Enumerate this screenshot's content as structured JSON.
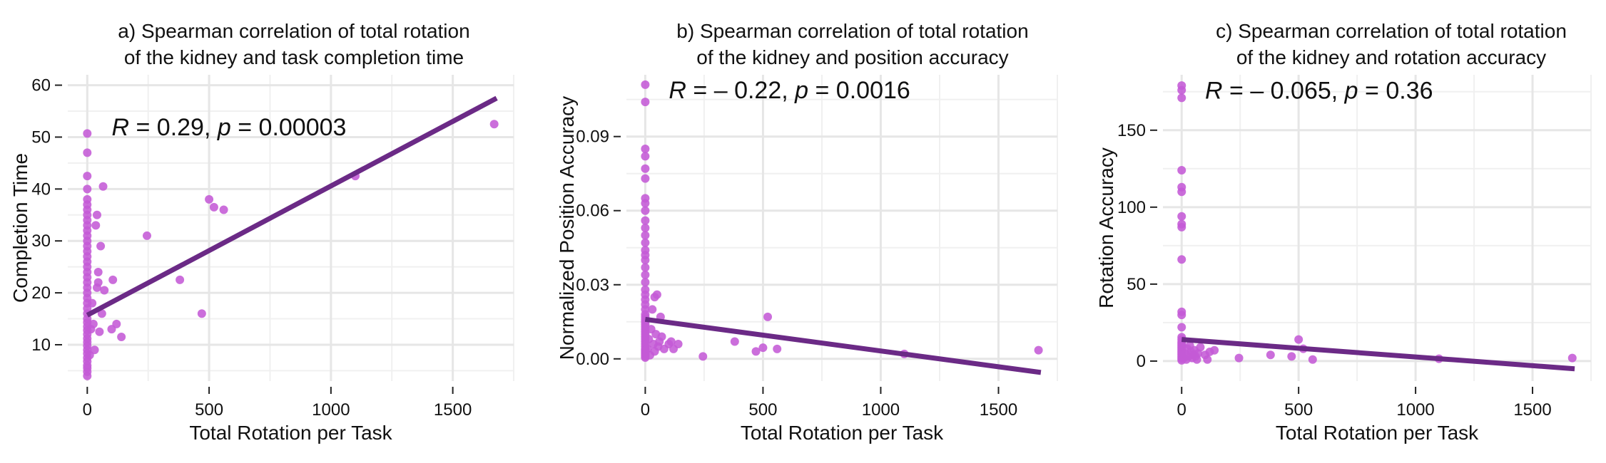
{
  "colors": {
    "point": "#c45ad6",
    "fit_line": "#6b2a86"
  },
  "chart_data": [
    {
      "type": "scatter",
      "title_lines": [
        "a) Spearman correlation of total rotation",
        "of the kidney and task completion time"
      ],
      "xlabel": "Total Rotation per Task",
      "ylabel": "Completion Time",
      "xlim": [
        -80,
        1750
      ],
      "ylim": [
        3,
        62
      ],
      "xticks": [
        0,
        500,
        1000,
        1500
      ],
      "yticks": [
        10,
        20,
        30,
        40,
        50,
        60
      ],
      "ytick_labels": [
        "10",
        "20",
        "30",
        "40",
        "50",
        "60"
      ],
      "annotation": {
        "R": "0.29",
        "p": "0.00003"
      },
      "annotation_pos": [
        100,
        52
      ],
      "fit_line": {
        "x": [
          0,
          1680
        ],
        "y": [
          15.7,
          57.5
        ]
      },
      "points": [
        [
          0,
          4
        ],
        [
          0,
          4.8
        ],
        [
          0,
          5.5
        ],
        [
          0,
          6
        ],
        [
          0,
          6.8
        ],
        [
          0,
          7.5
        ],
        [
          0,
          8.3
        ],
        [
          0,
          9
        ],
        [
          0,
          9.8
        ],
        [
          0,
          10.5
        ],
        [
          0,
          11.2
        ],
        [
          0,
          12
        ],
        [
          0,
          12.8
        ],
        [
          0,
          13.5
        ],
        [
          0,
          14.3
        ],
        [
          0,
          15
        ],
        [
          0,
          16
        ],
        [
          0,
          17
        ],
        [
          0,
          18
        ],
        [
          0,
          19
        ],
        [
          0,
          20
        ],
        [
          0,
          21
        ],
        [
          0,
          22
        ],
        [
          0,
          23
        ],
        [
          0,
          24
        ],
        [
          0,
          25
        ],
        [
          0,
          26
        ],
        [
          0,
          27
        ],
        [
          0,
          28
        ],
        [
          0,
          29
        ],
        [
          0,
          30
        ],
        [
          0,
          31
        ],
        [
          0,
          32
        ],
        [
          0,
          33
        ],
        [
          0,
          34
        ],
        [
          0,
          35
        ],
        [
          0,
          36
        ],
        [
          0,
          37
        ],
        [
          0,
          38
        ],
        [
          0,
          40
        ],
        [
          0,
          42.5
        ],
        [
          0,
          47
        ],
        [
          0,
          50.7
        ],
        [
          10,
          8
        ],
        [
          15,
          13
        ],
        [
          20,
          18
        ],
        [
          25,
          14
        ],
        [
          30,
          9
        ],
        [
          35,
          33
        ],
        [
          40,
          35
        ],
        [
          40,
          21
        ],
        [
          45,
          24
        ],
        [
          45,
          22
        ],
        [
          50,
          12.5
        ],
        [
          55,
          29
        ],
        [
          60,
          16
        ],
        [
          65,
          40.5
        ],
        [
          70,
          20.5
        ],
        [
          100,
          13
        ],
        [
          105,
          22.5
        ],
        [
          120,
          14
        ],
        [
          140,
          11.5
        ],
        [
          245,
          31
        ],
        [
          380,
          22.5
        ],
        [
          470,
          16
        ],
        [
          500,
          38
        ],
        [
          520,
          36.5
        ],
        [
          560,
          36
        ],
        [
          1100,
          42.5
        ],
        [
          1670,
          52.5
        ]
      ]
    },
    {
      "type": "scatter",
      "title_lines": [
        "b) Spearman correlation of total rotation",
        "of the kidney and position accuracy"
      ],
      "xlabel": "Total Rotation per Task",
      "ylabel": "Normalized Position Accuracy",
      "xlim": [
        -80,
        1750
      ],
      "ylim": [
        -0.009,
        0.115
      ],
      "xticks": [
        0,
        500,
        1000,
        1500
      ],
      "yticks": [
        0,
        0.03,
        0.06,
        0.09
      ],
      "ytick_labels": [
        "0.00",
        "0.03",
        "0.06",
        "0.09"
      ],
      "annotation": {
        "R": "– 0.22",
        "p": "0.0016"
      },
      "annotation_pos": [
        100,
        0.109
      ],
      "fit_line": {
        "x": [
          0,
          1680
        ],
        "y": [
          0.016,
          -0.0055
        ]
      },
      "points": [
        [
          0,
          0.0005
        ],
        [
          0,
          0.001
        ],
        [
          0,
          0.0015
        ],
        [
          0,
          0.002
        ],
        [
          0,
          0.0025
        ],
        [
          0,
          0.003
        ],
        [
          0,
          0.0035
        ],
        [
          0,
          0.004
        ],
        [
          0,
          0.005
        ],
        [
          0,
          0.006
        ],
        [
          0,
          0.007
        ],
        [
          0,
          0.008
        ],
        [
          0,
          0.009
        ],
        [
          0,
          0.01
        ],
        [
          0,
          0.011
        ],
        [
          0,
          0.012
        ],
        [
          0,
          0.013
        ],
        [
          0,
          0.014
        ],
        [
          0,
          0.015
        ],
        [
          0,
          0.016
        ],
        [
          0,
          0.017
        ],
        [
          0,
          0.018
        ],
        [
          0,
          0.02
        ],
        [
          0,
          0.022
        ],
        [
          0,
          0.024
        ],
        [
          0,
          0.026
        ],
        [
          0,
          0.028
        ],
        [
          0,
          0.031
        ],
        [
          0,
          0.034
        ],
        [
          0,
          0.037
        ],
        [
          0,
          0.04
        ],
        [
          0,
          0.042
        ],
        [
          0,
          0.044
        ],
        [
          0,
          0.047
        ],
        [
          0,
          0.05
        ],
        [
          0,
          0.053
        ],
        [
          0,
          0.056
        ],
        [
          0,
          0.06
        ],
        [
          0,
          0.063
        ],
        [
          0,
          0.065
        ],
        [
          0,
          0.073
        ],
        [
          0,
          0.077
        ],
        [
          0,
          0.082
        ],
        [
          0,
          0.085
        ],
        [
          0,
          0.104
        ],
        [
          0,
          0.111
        ],
        [
          10,
          0.004
        ],
        [
          15,
          0.008
        ],
        [
          20,
          0.0015
        ],
        [
          25,
          0.012
        ],
        [
          30,
          0.02
        ],
        [
          35,
          0.006
        ],
        [
          40,
          0.003
        ],
        [
          40,
          0.025
        ],
        [
          45,
          0.01
        ],
        [
          50,
          0.026
        ],
        [
          55,
          0.005
        ],
        [
          60,
          0.007
        ],
        [
          65,
          0.017
        ],
        [
          70,
          0.009
        ],
        [
          80,
          0.004
        ],
        [
          100,
          0.006
        ],
        [
          110,
          0.007
        ],
        [
          120,
          0.004
        ],
        [
          140,
          0.006
        ],
        [
          245,
          0.001
        ],
        [
          380,
          0.007
        ],
        [
          470,
          0.003
        ],
        [
          500,
          0.0045
        ],
        [
          520,
          0.017
        ],
        [
          560,
          0.004
        ],
        [
          1100,
          0.002
        ],
        [
          1670,
          0.0035
        ]
      ]
    },
    {
      "type": "scatter",
      "title_lines": [
        "c) Spearman correlation of total rotation",
        "of the kidney and rotation accuracy"
      ],
      "xlabel": "Total Rotation per Task",
      "ylabel": "Rotation Accuracy",
      "xlim": [
        -80,
        1750
      ],
      "ylim": [
        -13,
        186
      ],
      "xticks": [
        0,
        500,
        1000,
        1500
      ],
      "yticks": [
        0,
        50,
        100,
        150
      ],
      "ytick_labels": [
        "0",
        "50",
        "100",
        "150"
      ],
      "annotation": {
        "R": "– 0.065",
        "p": "0.36"
      },
      "annotation_pos": [
        100,
        176
      ],
      "fit_line": {
        "x": [
          0,
          1680
        ],
        "y": [
          14,
          -5
        ]
      },
      "points": [
        [
          0,
          0.5
        ],
        [
          0,
          1.5
        ],
        [
          0,
          2.5
        ],
        [
          0,
          3.5
        ],
        [
          0,
          4.5
        ],
        [
          0,
          5.5
        ],
        [
          0,
          6.5
        ],
        [
          0,
          7.5
        ],
        [
          0,
          8.5
        ],
        [
          0,
          9.5
        ],
        [
          0,
          10.5
        ],
        [
          0,
          11.5
        ],
        [
          0,
          12.5
        ],
        [
          0,
          14
        ],
        [
          0,
          15.5
        ],
        [
          0,
          22
        ],
        [
          0,
          30
        ],
        [
          0,
          32
        ],
        [
          0,
          66
        ],
        [
          0,
          87
        ],
        [
          0,
          89
        ],
        [
          0,
          94
        ],
        [
          0,
          110
        ],
        [
          0,
          113
        ],
        [
          0,
          124
        ],
        [
          0,
          171
        ],
        [
          0,
          176
        ],
        [
          0,
          179
        ],
        [
          10,
          2
        ],
        [
          15,
          5
        ],
        [
          20,
          1
        ],
        [
          25,
          8
        ],
        [
          30,
          3
        ],
        [
          35,
          10
        ],
        [
          40,
          6
        ],
        [
          45,
          2
        ],
        [
          50,
          4
        ],
        [
          55,
          7
        ],
        [
          60,
          3
        ],
        [
          65,
          1
        ],
        [
          70,
          5
        ],
        [
          80,
          9
        ],
        [
          100,
          4
        ],
        [
          110,
          1
        ],
        [
          120,
          6
        ],
        [
          140,
          7
        ],
        [
          245,
          2
        ],
        [
          380,
          4
        ],
        [
          470,
          3
        ],
        [
          500,
          14
        ],
        [
          520,
          8
        ],
        [
          560,
          1
        ],
        [
          1100,
          1.5
        ],
        [
          1670,
          2
        ]
      ]
    }
  ]
}
